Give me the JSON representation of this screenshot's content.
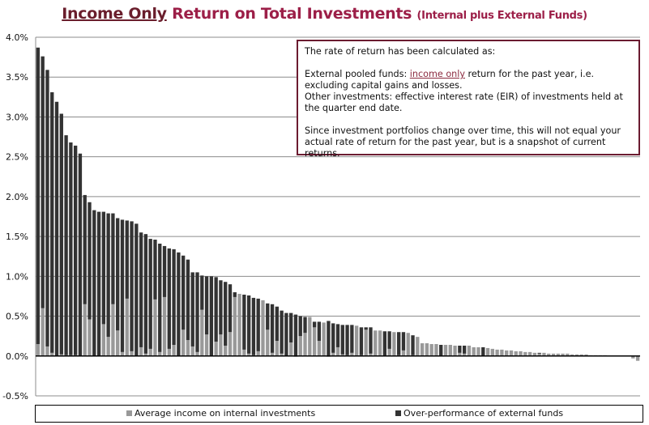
{
  "title": {
    "part1": "Income Only",
    "part2": "Return on Total Investments",
    "part3": "(Internal plus External Funds)"
  },
  "note": {
    "line1": "The rate of return has been calculated as:",
    "ext_prefix": "External pooled funds: ",
    "ext_link": "income only",
    "ext_suffix": " return for the past year, i.e. excluding capital gains and losses.",
    "other": "Other investments: effective interest rate (EIR) of investments held at the quarter end date.",
    "since": "Since investment portfolios change over time, this will not equal your actual rate of return for the past year, but is a snapshot of current returns."
  },
  "colors": {
    "internal": "#999999",
    "external": "#333333",
    "title": "#9c1f48",
    "border": "#6b1b30"
  },
  "chart_data": {
    "type": "bar",
    "stacked": true,
    "ylim": [
      -0.5,
      4.0
    ],
    "yticks": [
      "4.0%",
      "3.5%",
      "3.0%",
      "2.5%",
      "2.0%",
      "1.5%",
      "1.0%",
      "0.5%",
      "0.0%",
      "-0.5%"
    ],
    "ytick_values": [
      4.0,
      3.5,
      3.0,
      2.5,
      2.0,
      1.5,
      1.0,
      0.5,
      0.0,
      -0.5
    ],
    "grid": true,
    "legend": "bottom",
    "series": [
      {
        "name": "Average income on internal investments",
        "values": [
          0.15,
          0.6,
          0.12,
          0.04,
          0,
          0.02,
          0.01,
          0.01,
          0.01,
          0,
          0.65,
          0.46,
          0,
          0,
          0.4,
          0.24,
          0.65,
          0.32,
          0.05,
          0.72,
          0.06,
          0,
          0.11,
          0.03,
          0.09,
          0.71,
          0.05,
          0.74,
          0.09,
          0.14,
          0,
          0.33,
          0.2,
          0.12,
          0.05,
          0.58,
          0.27,
          0,
          0.18,
          0.27,
          0.13,
          0.3,
          0.74,
          0.78,
          0.08,
          0.03,
          0.01,
          0.06,
          0.7,
          0.33,
          0.04,
          0.19,
          0.03,
          0,
          0.17,
          -0.01,
          0.25,
          0.29,
          0.49,
          0.36,
          0.19,
          0.42,
          -0.01,
          0.04,
          0.11,
          0.02,
          0.01,
          0.04,
          0.38,
          0.01,
          0.33,
          0.03,
          0.32,
          0.32,
          0,
          0.09,
          0.3,
          0.01,
          0.07,
          0.29,
          0.01,
          0.24,
          0.16,
          0.16,
          0.15,
          0.15,
          0,
          0.14,
          0.14,
          0.13,
          0.04,
          0.03,
          0.13,
          0.11,
          0.11,
          0,
          0.1,
          0.09,
          0.08,
          0.08,
          0.07,
          0.07,
          0.06,
          0.06,
          0.05,
          0.05,
          0.04,
          0.03,
          0.04,
          0.03,
          0.03,
          0.03,
          0.03,
          0.03,
          0.02,
          0.02,
          0.02,
          0.02,
          0.01,
          0.01,
          0.01,
          0.01,
          0,
          0,
          0,
          0,
          0,
          -0.03,
          -0.06
        ]
      },
      {
        "name": "Over-performance of external funds",
        "values": [
          3.72,
          3.16,
          3.47,
          3.27,
          3.19,
          3.02,
          2.76,
          2.67,
          2.63,
          2.54,
          1.37,
          1.47,
          1.83,
          1.81,
          1.41,
          1.55,
          1.14,
          1.41,
          1.66,
          0.98,
          1.63,
          1.66,
          1.44,
          1.5,
          1.38,
          0.75,
          1.36,
          0.64,
          1.26,
          1.2,
          1.3,
          0.93,
          1.01,
          0.93,
          1.0,
          0.43,
          0.73,
          1.0,
          0.81,
          0.68,
          0.8,
          0.6,
          0.06,
          0,
          0.69,
          0.73,
          0.72,
          0.66,
          0,
          0.33,
          0.61,
          0.43,
          0.54,
          0.54,
          0.37,
          0.52,
          0.25,
          0.2,
          0,
          0.07,
          0.24,
          0,
          0.44,
          0.37,
          0.29,
          0.37,
          0.38,
          0.35,
          0,
          0.35,
          0.03,
          0.33,
          0,
          0,
          0.31,
          0.22,
          0,
          0.29,
          0.23,
          0,
          0.25,
          0,
          0,
          0,
          0,
          0,
          0.14,
          0,
          0,
          0,
          0.09,
          0.1,
          0,
          0,
          0,
          0.11,
          0,
          0,
          0,
          0,
          0,
          0,
          0,
          0,
          0,
          0,
          0,
          0.01,
          0,
          0,
          0,
          0,
          0,
          0,
          0,
          0,
          0,
          0,
          0,
          0,
          0,
          0,
          0,
          0,
          0,
          0,
          0,
          0,
          0
        ]
      }
    ]
  }
}
